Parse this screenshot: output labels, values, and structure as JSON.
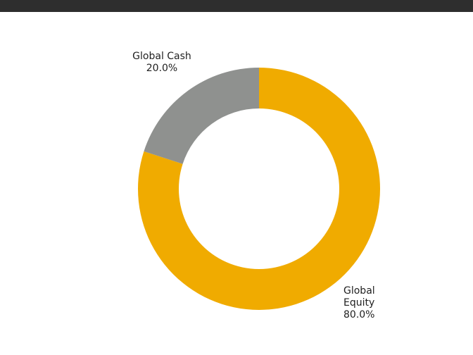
{
  "chart_data": {
    "type": "pie",
    "variant": "donut",
    "title": "",
    "slices": [
      {
        "name": "Global Equity",
        "label_lines": [
          "Global",
          "Equity"
        ],
        "value": 80.0,
        "value_label": "80.0%",
        "color": "#f0ab00"
      },
      {
        "name": "Global Cash",
        "label_lines": [
          "Global Cash"
        ],
        "value": 20.0,
        "value_label": "20.0%",
        "color": "#8f918f"
      }
    ],
    "start_angle_deg": 0,
    "direction": "clockwise",
    "legend": "none"
  }
}
